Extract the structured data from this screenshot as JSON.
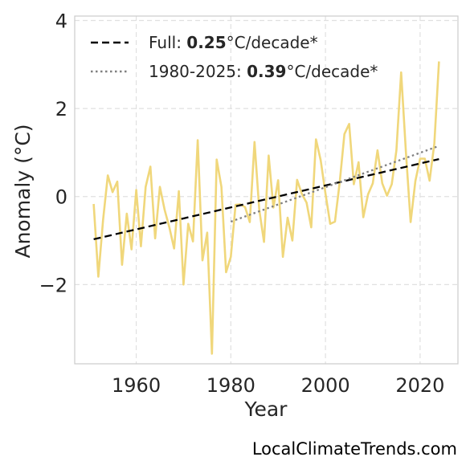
{
  "chart_data": {
    "type": "line",
    "xlabel": "Year",
    "ylabel": "Anomaly (°C)",
    "xlim": [
      1947,
      2028
    ],
    "ylim": [
      -3.8,
      4.1
    ],
    "x_ticks": [
      1960,
      1980,
      2000,
      2020
    ],
    "y_ticks": [
      4,
      2,
      0,
      -2
    ],
    "y_tick_labels": [
      "4",
      "2",
      "0",
      "−2"
    ],
    "grid": true,
    "legend_placement": "top-left",
    "series": [
      {
        "color": "#f0d77b",
        "style": "solid",
        "x": [
          1951,
          1952,
          1953,
          1954,
          1955,
          1956,
          1957,
          1958,
          1959,
          1960,
          1961,
          1962,
          1963,
          1964,
          1965,
          1966,
          1967,
          1968,
          1969,
          1970,
          1971,
          1972,
          1973,
          1974,
          1975,
          1976,
          1977,
          1978,
          1979,
          1980,
          1981,
          1982,
          1983,
          1984,
          1985,
          1986,
          1987,
          1988,
          1989,
          1990,
          1991,
          1992,
          1993,
          1994,
          1995,
          1996,
          1997,
          1998,
          1999,
          2000,
          2001,
          2002,
          2003,
          2004,
          2005,
          2006,
          2007,
          2008,
          2009,
          2010,
          2011,
          2012,
          2013,
          2014,
          2015,
          2016,
          2017,
          2018,
          2019,
          2020,
          2021,
          2022,
          2023,
          2024
        ],
        "y": [
          -0.17,
          -1.82,
          -0.53,
          0.48,
          0.1,
          0.34,
          -1.55,
          -0.39,
          -1.2,
          0.15,
          -1.13,
          0.22,
          0.68,
          -0.95,
          0.22,
          -0.3,
          -0.7,
          -1.18,
          0.12,
          -2.0,
          -0.62,
          -1.02,
          1.28,
          -1.45,
          -0.82,
          -3.57,
          0.84,
          0.22,
          -1.72,
          -1.37,
          -0.19,
          -0.18,
          -0.24,
          -0.58,
          1.24,
          -0.3,
          -1.03,
          0.93,
          -0.25,
          0.37,
          -1.37,
          -0.48,
          -1.0,
          0.38,
          0.06,
          -0.14,
          -0.7,
          1.3,
          0.82,
          0.07,
          -0.62,
          -0.57,
          0.32,
          1.42,
          1.65,
          0.28,
          0.78,
          -0.47,
          0.05,
          0.3,
          1.05,
          0.3,
          0.02,
          0.28,
          1.05,
          2.82,
          1.02,
          -0.58,
          0.35,
          0.86,
          0.86,
          0.36,
          1.2,
          3.07
        ]
      },
      {
        "name": "Full: 0.25°C/decade*",
        "color": "#000000",
        "style": "dashed",
        "x": [
          1951,
          2024
        ],
        "y": [
          -0.97,
          0.85
        ]
      },
      {
        "name": "1980-2025: 0.39°C/decade*",
        "color": "#808080",
        "style": "dotted",
        "x": [
          1980,
          2024
        ],
        "y": [
          -0.57,
          1.15
        ]
      }
    ],
    "legend": [
      {
        "prefix": "Full: ",
        "bold": "0.25",
        "suffix": "°C/decade*",
        "style": "dashed",
        "color": "#000000"
      },
      {
        "prefix": "1980-2025: ",
        "bold": "0.39",
        "suffix": "°C/decade*",
        "style": "dotted",
        "color": "#808080"
      }
    ]
  },
  "credit": "LocalClimateTrends.com"
}
